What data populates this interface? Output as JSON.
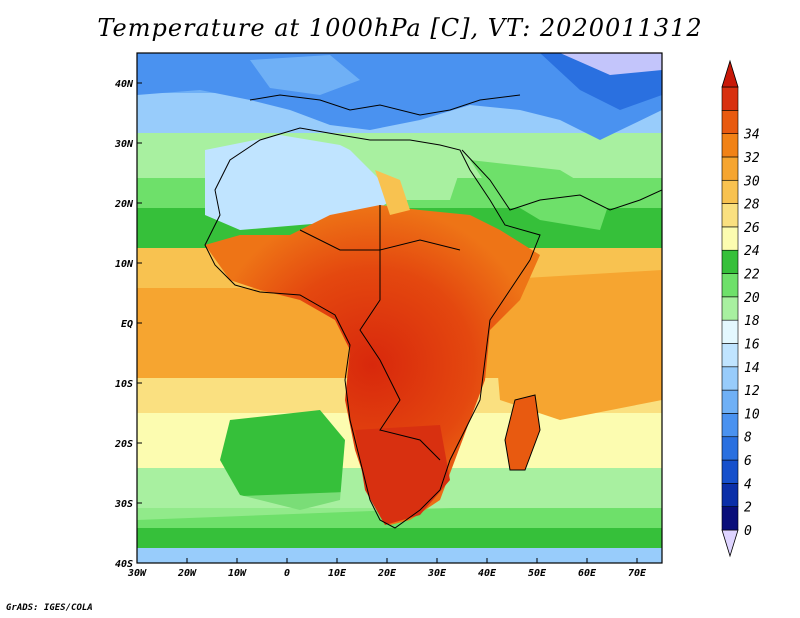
{
  "title": "Temperature at 1000hPa [C], VT: 2020011312",
  "credit": "GrADS: IGES/COLA",
  "map": {
    "lon_ticks": [
      "30W",
      "20W",
      "10W",
      "0",
      "10E",
      "20E",
      "30E",
      "40E",
      "50E",
      "60E",
      "70E"
    ],
    "lat_ticks": [
      "40N",
      "30N",
      "20N",
      "10N",
      "EQ",
      "10S",
      "20S",
      "30S",
      "40S"
    ],
    "lon_range": [
      -30,
      75
    ],
    "lat_range": [
      -40,
      45
    ]
  },
  "colorbar": {
    "labels": [
      "0",
      "2",
      "4",
      "6",
      "8",
      "10",
      "12",
      "14",
      "16",
      "18",
      "20",
      "22",
      "24",
      "26",
      "28",
      "30",
      "32",
      "34"
    ],
    "colors": [
      "#ded4ff",
      "#0a0f7a",
      "#0b2fa8",
      "#1650cc",
      "#2a70e0",
      "#4a92f0",
      "#6fb0f6",
      "#98ccfb",
      "#c0e4ff",
      "#e4f8ff",
      "#a8f0a0",
      "#6ee06a",
      "#36c03a",
      "#fcfcb0",
      "#fae080",
      "#f8c250",
      "#f6a530",
      "#f18216",
      "#e85a10",
      "#d83010",
      "#c81808"
    ]
  }
}
